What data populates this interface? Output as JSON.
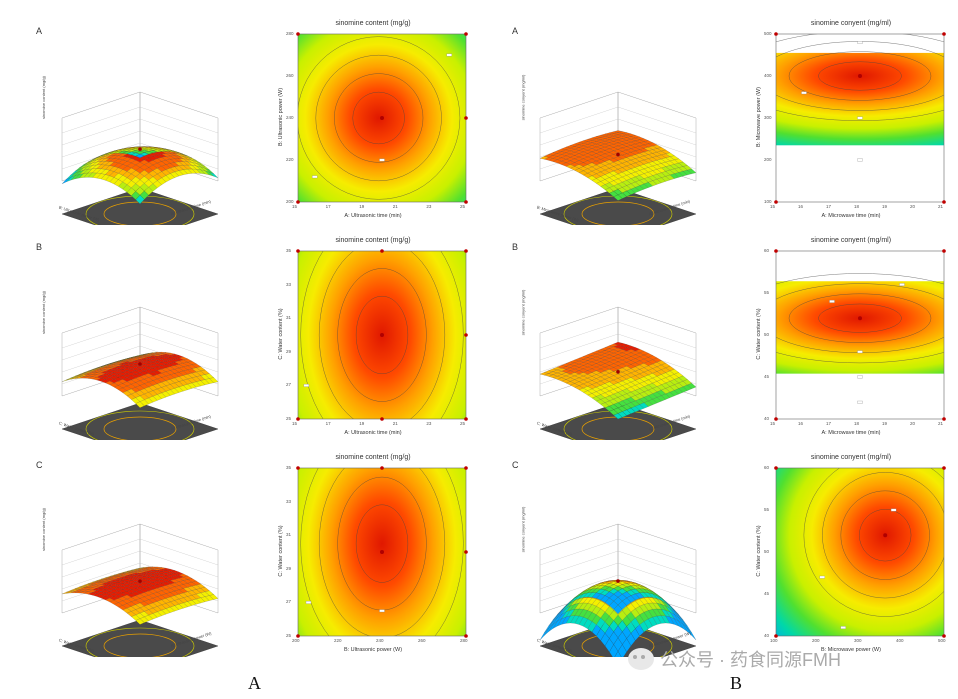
{
  "row_labels": {
    "left": [
      "A",
      "B",
      "C"
    ],
    "right": [
      "A",
      "B",
      "C"
    ]
  },
  "figure_letters": {
    "left": "A",
    "right": "B"
  },
  "watermark": "公众号 · 药食同源FMH",
  "chart_data": [
    {
      "type": "heatmap",
      "panel": "left-A-contour",
      "title": "sinomine content (mg/g)",
      "xlabel": "A: Ultrasonic time (min)",
      "ylabel": "B: Ultrasonic power (W)",
      "xticks": [
        "15",
        "17",
        "19",
        "21",
        "23",
        "25"
      ],
      "yticks": [
        "200",
        "220",
        "240",
        "260",
        "280"
      ],
      "xlim": [
        15,
        25
      ],
      "ylim": [
        200,
        280
      ],
      "center": [
        19.8,
        240
      ],
      "colormap": [
        "#00a0ff",
        "#00e0a0",
        "#70e020",
        "#e8f000",
        "#ffb000",
        "#ff5a00",
        "#e02000"
      ],
      "design_points": [
        [
          20,
          240
        ],
        [
          20,
          220
        ],
        [
          15,
          200
        ],
        [
          15,
          280
        ],
        [
          25,
          200
        ],
        [
          25,
          280
        ],
        [
          25,
          240
        ],
        [
          24,
          270
        ],
        [
          16,
          212
        ]
      ]
    },
    {
      "type": "heatmap",
      "panel": "right-A-contour",
      "title": "sinomine conyent (mg/ml)",
      "xlabel": "A: Microwave time (min)",
      "ylabel": "B: Microwave power (W)",
      "xticks": [
        "15",
        "16",
        "17",
        "18",
        "19",
        "20",
        "21"
      ],
      "yticks": [
        "100",
        "200",
        "300",
        "400",
        "500"
      ],
      "xlim": [
        15,
        21
      ],
      "ylim": [
        100,
        500
      ],
      "center": [
        18,
        400
      ],
      "design_points": [
        [
          18,
          400
        ],
        [
          18,
          480
        ],
        [
          18,
          300
        ],
        [
          18,
          200
        ],
        [
          16,
          360
        ],
        [
          15,
          100
        ],
        [
          21,
          100
        ],
        [
          21,
          500
        ],
        [
          15,
          500
        ]
      ]
    },
    {
      "type": "heatmap",
      "panel": "left-B-contour",
      "title": "sinomine content (mg/g)",
      "xlabel": "A: Ultrasonic time (min)",
      "ylabel": "C: Water content (%)",
      "xticks": [
        "15",
        "17",
        "19",
        "21",
        "23",
        "25"
      ],
      "yticks": [
        "25",
        "27",
        "29",
        "31",
        "33",
        "35"
      ],
      "xlim": [
        15,
        25
      ],
      "ylim": [
        25,
        35
      ],
      "center": [
        20,
        30
      ],
      "design_points": [
        [
          20,
          30
        ],
        [
          20,
          25
        ],
        [
          15,
          25
        ],
        [
          15,
          35
        ],
        [
          25,
          25
        ],
        [
          25,
          35
        ],
        [
          25,
          30
        ],
        [
          20,
          35
        ],
        [
          15.5,
          27
        ]
      ]
    },
    {
      "type": "heatmap",
      "panel": "right-B-contour",
      "title": "sinomine conyent (mg/ml)",
      "xlabel": "A: Microwave time (min)",
      "ylabel": "C: Water content (%)",
      "xticks": [
        "15",
        "16",
        "17",
        "18",
        "19",
        "20",
        "21"
      ],
      "yticks": [
        "40",
        "45",
        "50",
        "55",
        "60"
      ],
      "xlim": [
        15,
        21
      ],
      "ylim": [
        40,
        60
      ],
      "center": [
        18,
        52
      ],
      "design_points": [
        [
          18,
          52
        ],
        [
          17,
          54
        ],
        [
          19.5,
          56
        ],
        [
          18,
          48
        ],
        [
          18,
          45
        ],
        [
          18,
          42
        ],
        [
          15,
          40
        ],
        [
          21,
          40
        ],
        [
          15,
          60
        ],
        [
          21,
          60
        ]
      ]
    },
    {
      "type": "heatmap",
      "panel": "left-C-contour",
      "title": "sinomine content (mg/g)",
      "xlabel": "B: Ultrasonic power (W)",
      "ylabel": "C: Water content (%)",
      "xticks": [
        "200",
        "220",
        "240",
        "260",
        "280"
      ],
      "yticks": [
        "25",
        "27",
        "29",
        "31",
        "33",
        "35"
      ],
      "xlim": [
        200,
        280
      ],
      "ylim": [
        25,
        35
      ],
      "center": [
        240,
        30.5
      ],
      "design_points": [
        [
          240,
          30
        ],
        [
          240,
          26.5
        ],
        [
          200,
          25
        ],
        [
          200,
          35
        ],
        [
          280,
          25
        ],
        [
          280,
          35
        ],
        [
          280,
          30
        ],
        [
          240,
          35
        ],
        [
          205,
          27
        ]
      ]
    },
    {
      "type": "heatmap",
      "panel": "right-C-contour",
      "title": "sinomine conyent (mg/ml)",
      "xlabel": "B: Microwave power (W)",
      "ylabel": "C: Water content (%)",
      "xticks": [
        "100",
        "200",
        "300",
        "400",
        "500"
      ],
      "yticks": [
        "40",
        "45",
        "50",
        "55",
        "60"
      ],
      "xlim": [
        100,
        500
      ],
      "ylim": [
        40,
        60
      ],
      "center": [
        360,
        52
      ],
      "design_points": [
        [
          360,
          52
        ],
        [
          380,
          55
        ],
        [
          210,
          47
        ],
        [
          260,
          41
        ],
        [
          100,
          40
        ],
        [
          500,
          40
        ],
        [
          100,
          60
        ],
        [
          500,
          60
        ]
      ]
    },
    {
      "type": "surface3d",
      "panel": "left-A-3d",
      "zlabel": "sinomine content (mg/g)",
      "xlabel": "A: Ultrasonic time (min)",
      "ylabel": "B: Ultrasonic power (W)"
    },
    {
      "type": "surface3d",
      "panel": "right-A-3d",
      "zlabel": "sinomine conyent (mg/ml)",
      "xlabel": "A: Microwave time (min)",
      "ylabel": "B: Microwave power (W)"
    },
    {
      "type": "surface3d",
      "panel": "left-B-3d",
      "zlabel": "sinomine content (mg/g)",
      "xlabel": "A: Ultrasonic time (min)",
      "ylabel": "C: Water content (%)"
    },
    {
      "type": "surface3d",
      "panel": "right-B-3d",
      "zlabel": "sinomine conyent (mg/ml)",
      "xlabel": "A: Microwave time (min)",
      "ylabel": "C: Water content (%)"
    },
    {
      "type": "surface3d",
      "panel": "left-C-3d",
      "zlabel": "sinomine content (mg/g)",
      "xlabel": "B: Ultrasonic power (W)",
      "ylabel": "C: Water content (%)"
    },
    {
      "type": "surface3d",
      "panel": "right-C-3d",
      "zlabel": "sinomine conyent (mg/ml)",
      "xlabel": "B: Microwave power (W)",
      "ylabel": "C: Water content (%)"
    }
  ]
}
